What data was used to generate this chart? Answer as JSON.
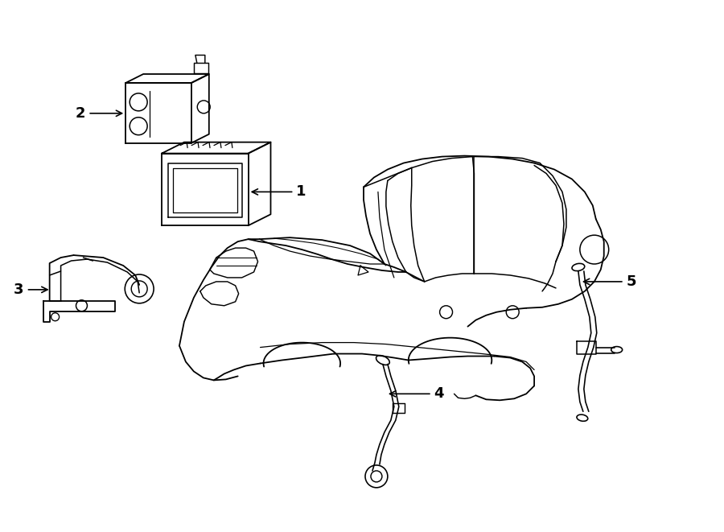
{
  "bg_color": "#ffffff",
  "line_color": "#000000",
  "fig_width": 9.0,
  "fig_height": 6.61,
  "dpi": 100,
  "lw": 1.3
}
